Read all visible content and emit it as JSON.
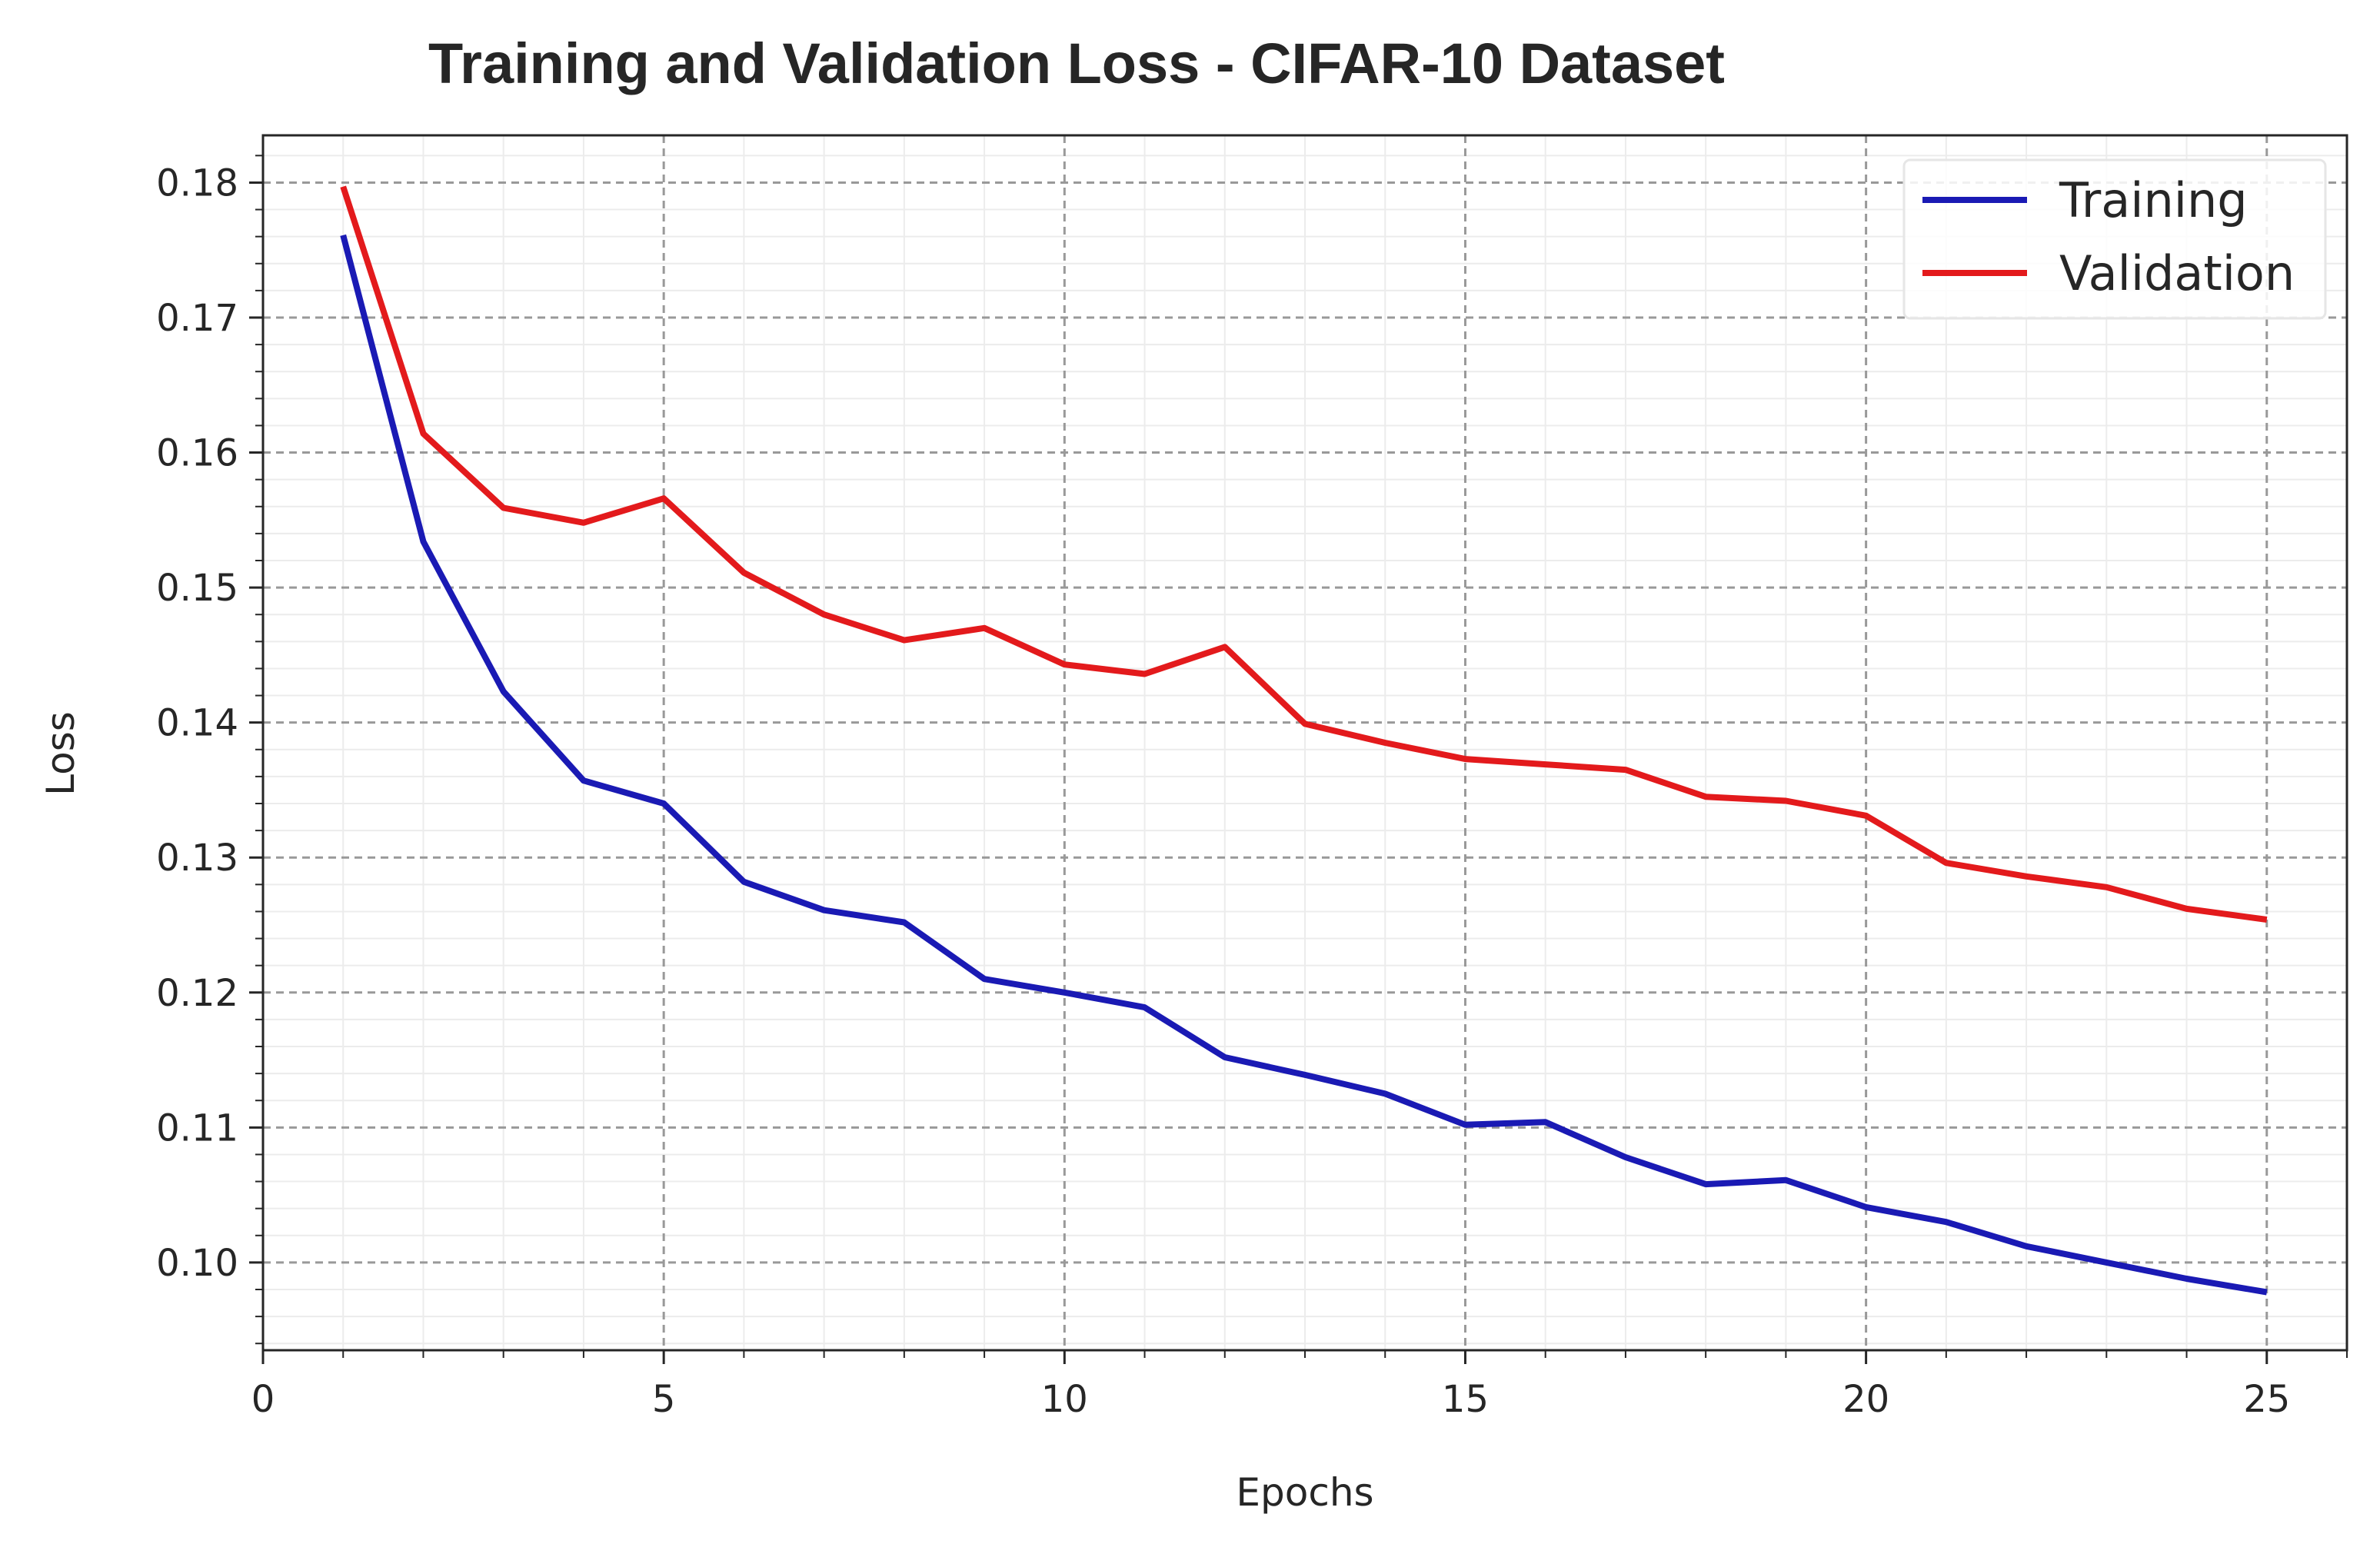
{
  "chart_data": {
    "type": "line",
    "title": "Training and Validation Loss - CIFAR-10 Dataset",
    "xlabel": "Epochs",
    "ylabel": "Loss",
    "xlim": [
      0,
      26
    ],
    "ylim": [
      0.0935,
      0.1835
    ],
    "xticks": [
      0,
      5,
      10,
      15,
      20,
      25
    ],
    "xtick_labels": [
      "0",
      "5",
      "10",
      "15",
      "20",
      "25"
    ],
    "yticks": [
      0.1,
      0.11,
      0.12,
      0.13,
      0.14,
      0.15,
      0.16,
      0.17,
      0.18
    ],
    "ytick_labels": [
      "0.10",
      "0.11",
      "0.12",
      "0.13",
      "0.14",
      "0.15",
      "0.16",
      "0.17",
      "0.18"
    ],
    "grid": true,
    "legend_position": "top-right",
    "x": [
      1,
      2,
      3,
      4,
      5,
      6,
      7,
      8,
      9,
      10,
      11,
      12,
      13,
      14,
      15,
      16,
      17,
      18,
      19,
      20,
      21,
      22,
      23,
      24,
      25
    ],
    "series": [
      {
        "name": "Training",
        "color": "#1a1ab4",
        "values": [
          0.1761,
          0.1534,
          0.1423,
          0.1357,
          0.134,
          0.1282,
          0.1261,
          0.1252,
          0.121,
          0.12,
          0.1189,
          0.1152,
          0.1139,
          0.1125,
          0.1102,
          0.1104,
          0.1078,
          0.1058,
          0.1061,
          0.1041,
          0.103,
          0.1012,
          0.1,
          0.0988,
          0.0978
        ]
      },
      {
        "name": "Validation",
        "color": "#e31a1c",
        "values": [
          0.1797,
          0.1614,
          0.1559,
          0.1548,
          0.1566,
          0.1511,
          0.148,
          0.1461,
          0.147,
          0.1443,
          0.1436,
          0.1456,
          0.1399,
          0.1385,
          0.1373,
          0.1369,
          0.1365,
          0.1345,
          0.1342,
          0.1331,
          0.1296,
          0.1286,
          0.1278,
          0.1262,
          0.1254
        ]
      }
    ]
  }
}
